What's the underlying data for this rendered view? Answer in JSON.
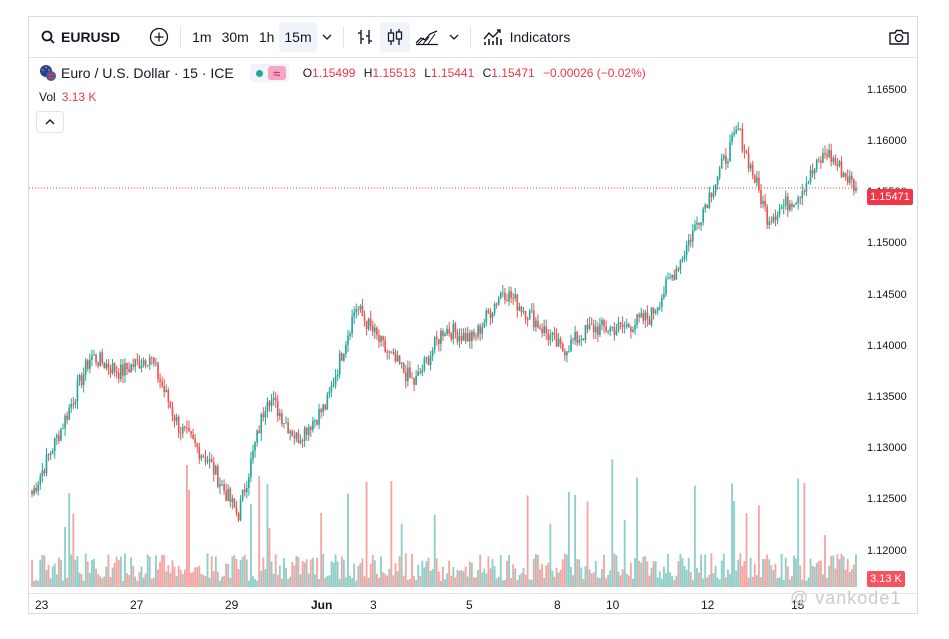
{
  "toolbar": {
    "symbol": "EURUSD",
    "intervals": [
      "1m",
      "30m",
      "1h",
      "15m"
    ],
    "active_interval": "15m",
    "indicators_label": "Indicators"
  },
  "legend": {
    "title": "Euro / U.S. Dollar · 15 · ICE",
    "open_label": "O",
    "open": "1.15499",
    "high_label": "H",
    "high": "1.15513",
    "low_label": "L",
    "low": "1.15441",
    "close_label": "C",
    "close": "1.15471",
    "change": "−0.00026 (−0.02%)",
    "volume_label": "Vol",
    "volume": "3.13 K"
  },
  "y_axis": [
    "1.16500",
    "1.16000",
    "1.15500",
    "1.15000",
    "1.14500",
    "1.14000",
    "1.13500",
    "1.13000",
    "1.12500",
    "1.12000"
  ],
  "current_price_tag": "1.15471",
  "volume_tag": "3.13 K",
  "x_axis": [
    "23",
    "27",
    "29",
    "Jun",
    "3",
    "5",
    "8",
    "10",
    "12",
    "15"
  ],
  "watermark": "@ vankode1",
  "colors": {
    "up": "#26a69a",
    "down": "#ef5350",
    "last_price": "#f23645"
  },
  "chart_data": {
    "type": "candlestick",
    "x_labels": [
      "23",
      "27",
      "29",
      "Jun",
      "3",
      "5",
      "8",
      "10",
      "12",
      "15"
    ],
    "close_path": [
      [
        "23",
        1.127
      ],
      [
        "24",
        1.133
      ],
      [
        "25",
        1.1395
      ],
      [
        "26",
        1.138
      ],
      [
        "27",
        1.1395
      ],
      [
        "28",
        1.133
      ],
      [
        "28b",
        1.13
      ],
      [
        "29",
        1.125
      ],
      [
        "30",
        1.136
      ],
      [
        "31",
        1.132
      ],
      [
        "Jun",
        1.135
      ],
      [
        "2",
        1.144
      ],
      [
        "3",
        1.14
      ],
      [
        "4",
        1.137
      ],
      [
        "4b",
        1.142
      ],
      [
        "5",
        1.141
      ],
      [
        "6",
        1.1455
      ],
      [
        "7",
        1.143
      ],
      [
        "8",
        1.14
      ],
      [
        "9",
        1.142
      ],
      [
        "10",
        1.142
      ],
      [
        "11",
        1.143
      ],
      [
        "11b",
        1.148
      ],
      [
        "12",
        1.154
      ],
      [
        "12b",
        1.16
      ],
      [
        "13",
        1.152
      ],
      [
        "14",
        1.154
      ],
      [
        "14b",
        1.158
      ],
      [
        "15",
        1.1547
      ]
    ],
    "ylim": [
      1.118,
      1.1665
    ],
    "last_price": 1.15471,
    "last_volume": "3.13 K",
    "series": [
      {
        "name": "Vol",
        "type": "histogram"
      }
    ]
  }
}
